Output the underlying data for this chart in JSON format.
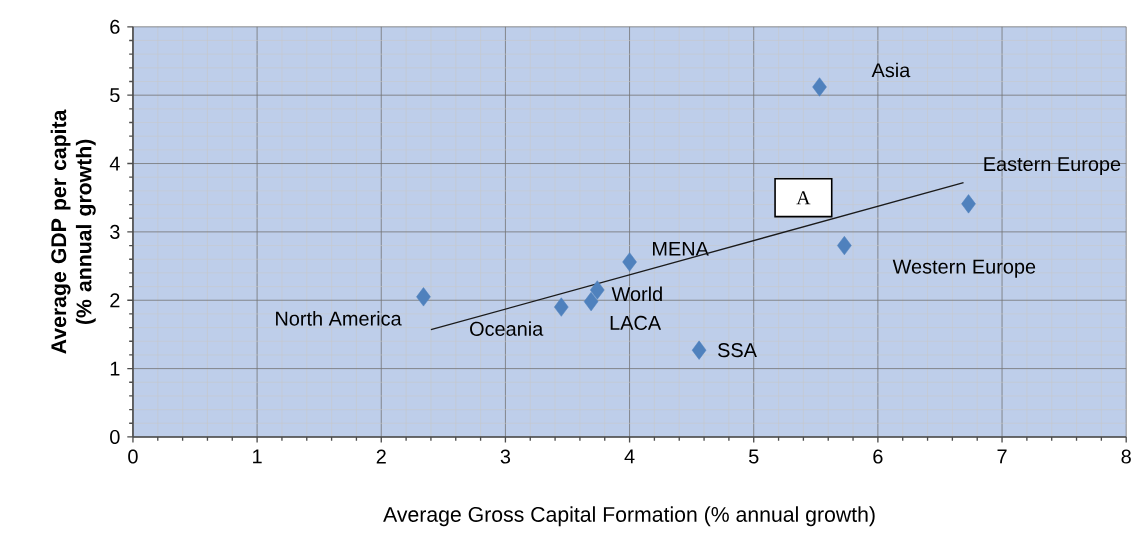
{
  "chart_data": {
    "type": "scatter",
    "xlabel": "Average Gross Capital Formation (% annual growth)",
    "ylabel": "Average GDP per capita (% annual growth)",
    "xlim": [
      0,
      8
    ],
    "ylim": [
      0,
      6
    ],
    "xticks": [
      0,
      1,
      2,
      3,
      4,
      5,
      6,
      7,
      8
    ],
    "yticks": [
      0,
      1,
      2,
      3,
      4,
      5,
      6
    ],
    "grid": true,
    "marker": "diamond",
    "annotations": [
      "A"
    ],
    "series": [
      {
        "name": "Asia",
        "color": "#4f81bd",
        "x": [
          5.53
        ],
        "values": [
          5.12
        ]
      },
      {
        "name": "Eastern Europe",
        "color": "#4f81bd",
        "x": [
          6.73
        ],
        "values": [
          3.41
        ]
      },
      {
        "name": "Western Europe",
        "color": "#4f81bd",
        "x": [
          5.73
        ],
        "values": [
          2.8
        ]
      },
      {
        "name": "MENA",
        "color": "#4f81bd",
        "x": [
          4.0
        ],
        "values": [
          2.56
        ]
      },
      {
        "name": "World",
        "color": "#4f81bd",
        "x": [
          3.74
        ],
        "values": [
          2.15
        ]
      },
      {
        "name": "LACA",
        "color": "#4f81bd",
        "x": [
          3.69
        ],
        "values": [
          1.98
        ]
      },
      {
        "name": "Oceania",
        "color": "#4f81bd",
        "x": [
          3.45
        ],
        "values": [
          1.9
        ]
      },
      {
        "name": "North America",
        "color": "#4f81bd",
        "x": [
          2.34
        ],
        "values": [
          2.05
        ]
      },
      {
        "name": "SSA",
        "color": "#4f81bd",
        "x": [
          4.56
        ],
        "values": [
          1.27
        ]
      },
      {
        "type": "line",
        "marker": "none",
        "color": "#1a1a1a",
        "x": [
          2.4,
          6.69
        ],
        "values": [
          1.57,
          3.72
        ]
      }
    ]
  }
}
